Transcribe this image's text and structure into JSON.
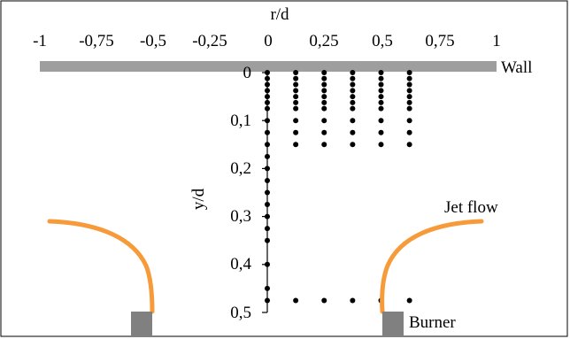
{
  "x_axis": {
    "title": "r/d",
    "ticks": [
      "-1",
      "-0,75",
      "-0,5",
      "-0,25",
      "0",
      "0,25",
      "0,5",
      "0,75",
      "1"
    ],
    "values": [
      -1,
      -0.75,
      -0.5,
      -0.25,
      0,
      0.25,
      0.5,
      0.75,
      1
    ]
  },
  "y_axis": {
    "title": "y/d",
    "ticks": [
      "0",
      "0,1",
      "0,2",
      "0,3",
      "0,4",
      "0,5"
    ],
    "values": [
      0,
      0.1,
      0.2,
      0.3,
      0.4,
      0.5
    ]
  },
  "labels": {
    "wall": "Wall",
    "jet": "Jet flow",
    "burner": "Burner"
  },
  "measurement_points": {
    "centerline": {
      "r": 0,
      "y": [
        0.0,
        0.0125,
        0.025,
        0.0375,
        0.05,
        0.0625,
        0.075,
        0.1,
        0.125,
        0.15,
        0.175,
        0.2,
        0.225,
        0.25,
        0.275,
        0.3,
        0.325,
        0.35,
        0.4,
        0.45,
        0.475
      ]
    },
    "near_wall_columns": {
      "r": [
        0.125,
        0.25,
        0.375,
        0.5,
        0.625
      ],
      "y": [
        0.0,
        0.0125,
        0.025,
        0.0375,
        0.05,
        0.0625,
        0.075,
        0.1,
        0.125,
        0.15
      ]
    },
    "lower_row": {
      "y": 0.475,
      "r": [
        0.125,
        0.25,
        0.375,
        0.5,
        0.625
      ]
    }
  },
  "colors": {
    "wall": "#9e9e9e",
    "jet": "#f79a3a",
    "burner": "#808080",
    "points": "#000000"
  }
}
